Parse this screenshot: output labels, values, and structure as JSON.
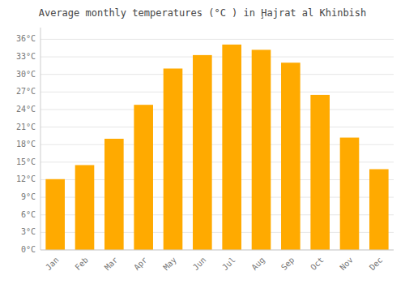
{
  "chart_data": {
    "type": "bar",
    "title": "Average monthly temperatures (°C ) in Ḩajrat al Khinbish",
    "categories": [
      "Jan",
      "Feb",
      "Mar",
      "Apr",
      "May",
      "Jun",
      "Jul",
      "Aug",
      "Sep",
      "Oct",
      "Nov",
      "Dec"
    ],
    "values": [
      12.1,
      14.5,
      19.0,
      24.8,
      31.0,
      33.3,
      35.1,
      34.2,
      32.0,
      26.5,
      19.2,
      13.8
    ],
    "color": "#FFAA00",
    "ylim": [
      0,
      38
    ],
    "yticks": [
      {
        "value": 0,
        "label": "0°C"
      },
      {
        "value": 3,
        "label": "3°C"
      },
      {
        "value": 6,
        "label": "6°C"
      },
      {
        "value": 9,
        "label": "9°C"
      },
      {
        "value": 12,
        "label": "12°C"
      },
      {
        "value": 15,
        "label": "15°C"
      },
      {
        "value": 18,
        "label": "18°C"
      },
      {
        "value": 21,
        "label": "21°C"
      },
      {
        "value": 24,
        "label": "24°C"
      },
      {
        "value": 27,
        "label": "27°C"
      },
      {
        "value": 30,
        "label": "30°C"
      },
      {
        "value": 33,
        "label": "33°C"
      },
      {
        "value": 36,
        "label": "36°C"
      }
    ],
    "grid": true
  }
}
